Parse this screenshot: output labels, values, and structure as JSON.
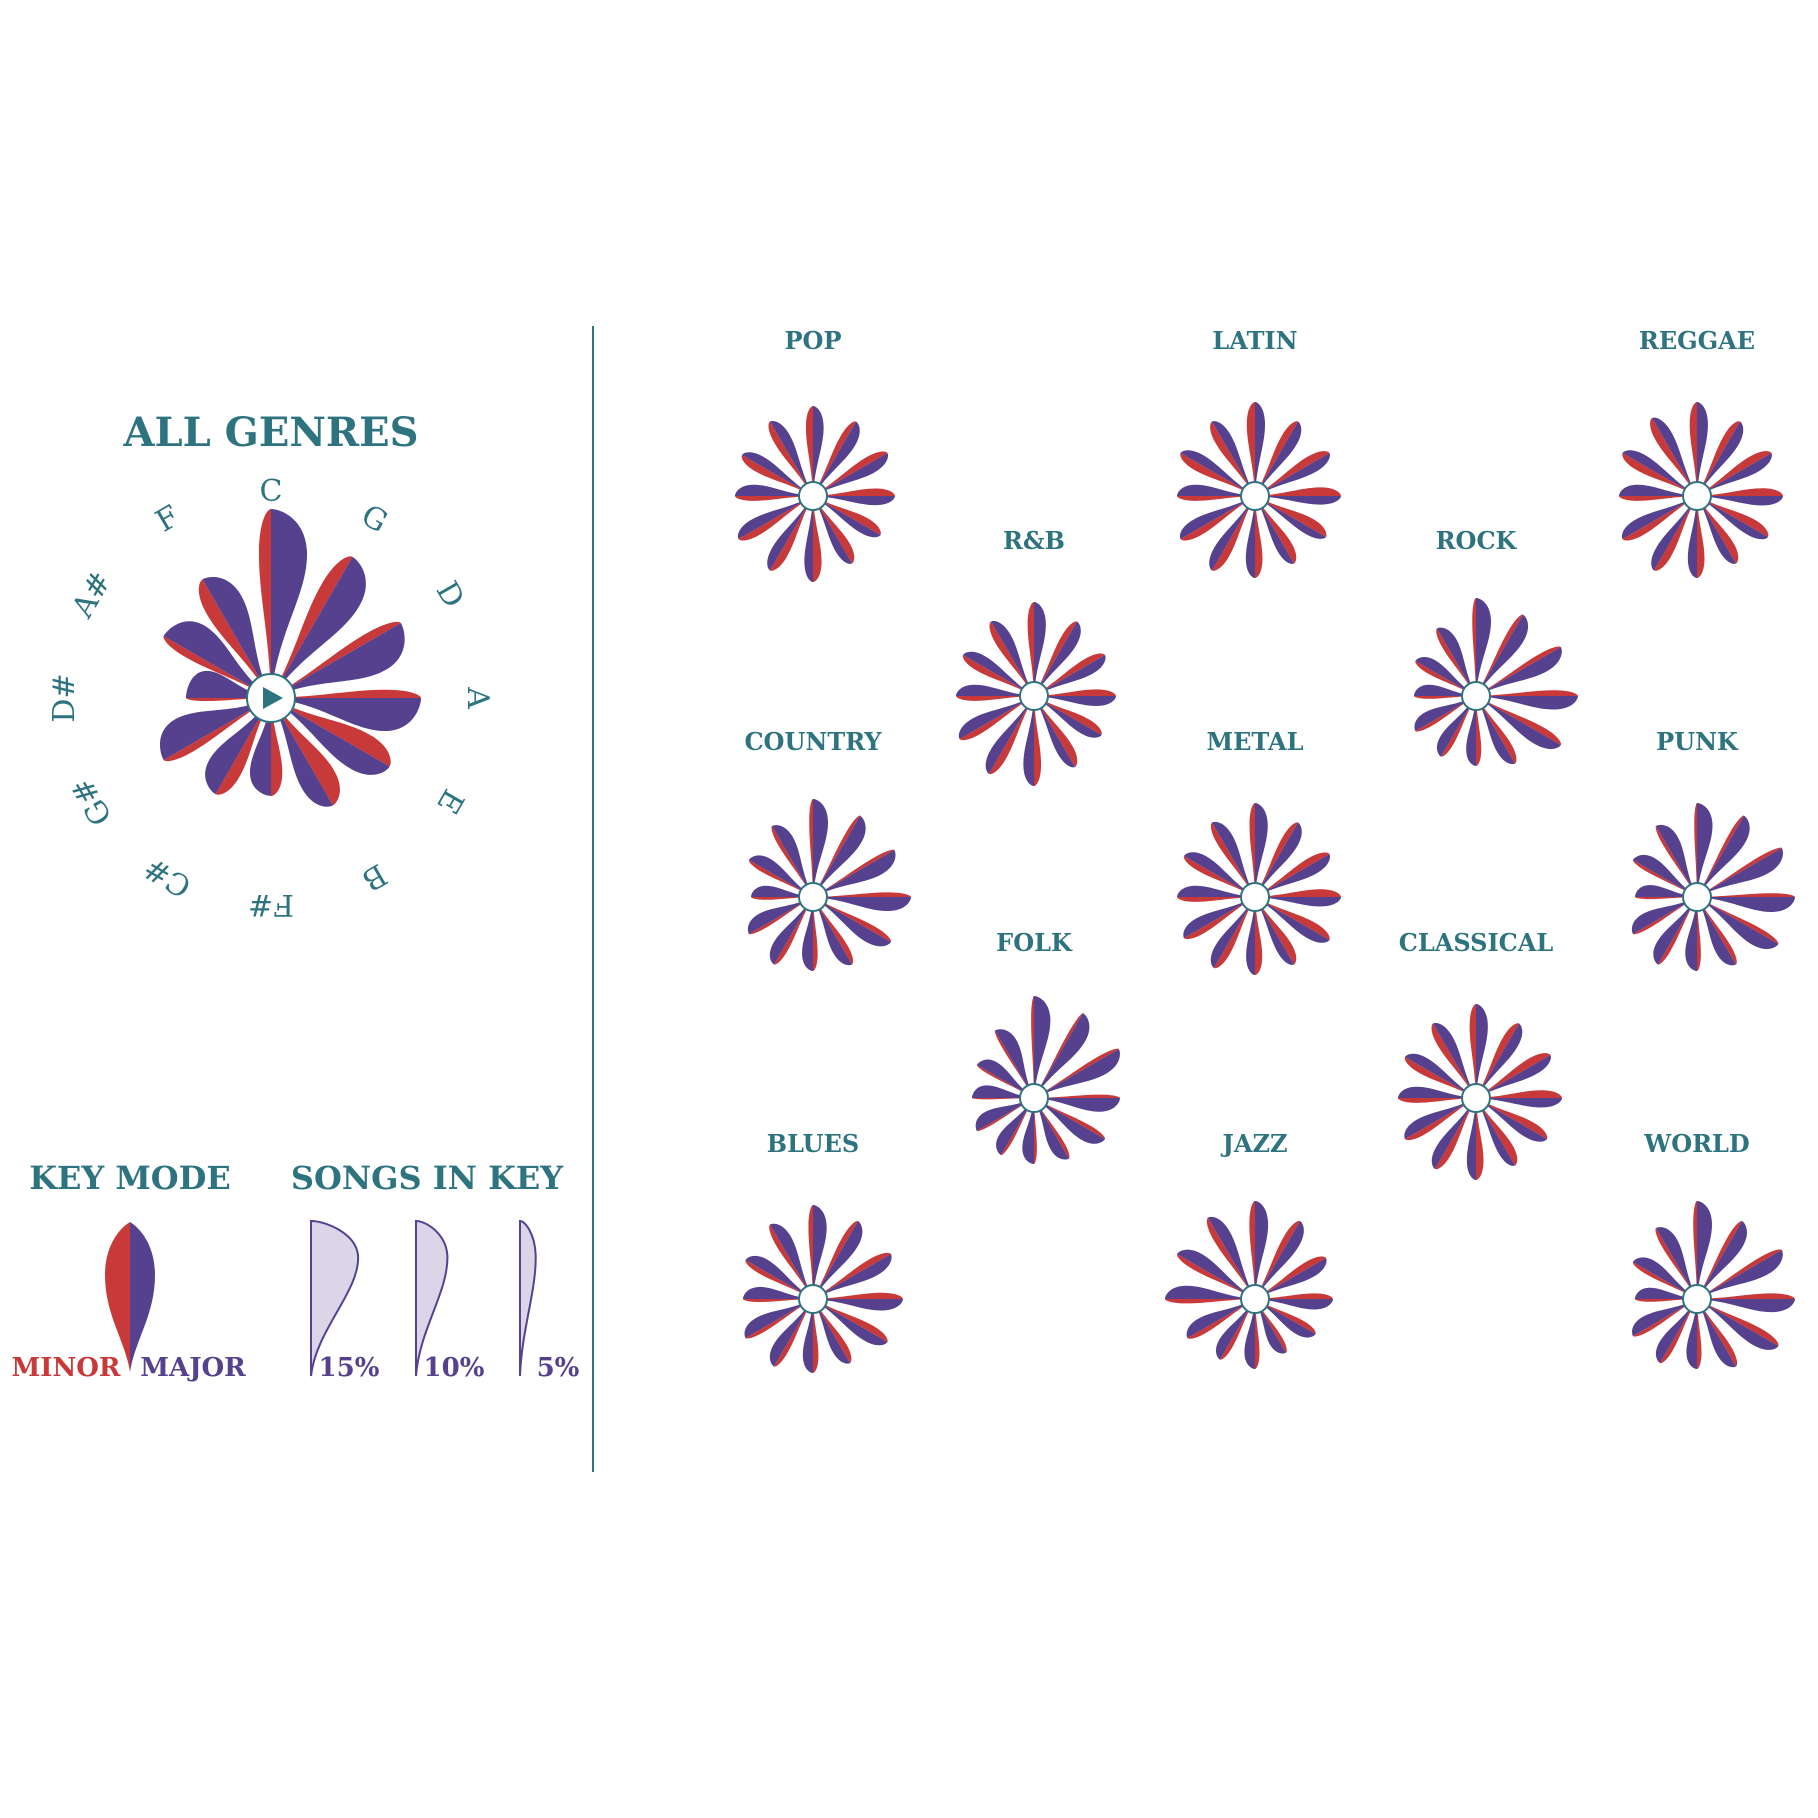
{
  "colors": {
    "minor": "#c8393a",
    "major": "#56418f",
    "accent": "#2e7480",
    "fill_light": "#dbd5e8"
  },
  "main": {
    "title": "ALL GENRES"
  },
  "keys": [
    "C",
    "G",
    "D",
    "A",
    "E",
    "B",
    "F#",
    "C#",
    "G#",
    "D#",
    "A#",
    "F"
  ],
  "legend": {
    "key_mode": "KEY MODE",
    "minor": "MINOR",
    "major": "MAJOR",
    "songs_in_key": "SONGS IN KEY",
    "sizes": [
      {
        "label": "15%",
        "share": 15
      },
      {
        "label": "10%",
        "share": 10
      },
      {
        "label": "5%",
        "share": 5
      }
    ]
  },
  "chart_data": [
    {
      "type": "radial-petal",
      "genre": "ALL GENRES",
      "keys": [
        "C",
        "G",
        "D",
        "A",
        "E",
        "B",
        "F#",
        "C#",
        "G#",
        "D#",
        "A#",
        "F"
      ],
      "share_pct": [
        13,
        11,
        10,
        10,
        9,
        8,
        6,
        7,
        8,
        5,
        8,
        9
      ],
      "minor_fraction": [
        0.25,
        0.3,
        0.2,
        0.2,
        0.45,
        0.5,
        0.35,
        0.35,
        0.2,
        0.1,
        0.2,
        0.35
      ]
    },
    {
      "type": "radial-petal",
      "genre": "POP",
      "keys": [
        "C",
        "G",
        "D",
        "A",
        "E",
        "B",
        "F#",
        "C#",
        "G#",
        "D#",
        "A#",
        "F"
      ],
      "share_pct": [
        8.5,
        8,
        8,
        7.5,
        7,
        7,
        8,
        8,
        8,
        7,
        7.5,
        8
      ],
      "minor_fraction": [
        0.4,
        0.35,
        0.4,
        0.45,
        0.5,
        0.5,
        0.5,
        0.45,
        0.4,
        0.3,
        0.45,
        0.4
      ]
    },
    {
      "type": "radial-petal",
      "genre": "LATIN",
      "keys": [
        "C",
        "G",
        "D",
        "A",
        "E",
        "B",
        "F#",
        "C#",
        "G#",
        "D#",
        "A#",
        "F"
      ],
      "share_pct": [
        9,
        8,
        8,
        8,
        7.5,
        7,
        7.5,
        8,
        8,
        7,
        8,
        8
      ],
      "minor_fraction": [
        0.45,
        0.4,
        0.45,
        0.5,
        0.55,
        0.5,
        0.45,
        0.45,
        0.4,
        0.3,
        0.45,
        0.45
      ]
    },
    {
      "type": "radial-petal",
      "genre": "REGGAE",
      "keys": [
        "C",
        "G",
        "D",
        "A",
        "E",
        "B",
        "F#",
        "C#",
        "G#",
        "D#",
        "A#",
        "F"
      ],
      "share_pct": [
        9,
        8,
        8,
        8,
        7.5,
        7,
        7.5,
        8,
        8,
        7,
        8,
        8.5
      ],
      "minor_fraction": [
        0.4,
        0.4,
        0.45,
        0.45,
        0.5,
        0.5,
        0.45,
        0.45,
        0.4,
        0.3,
        0.45,
        0.45
      ]
    },
    {
      "type": "radial-petal",
      "genre": "R&B",
      "keys": [
        "C",
        "G",
        "D",
        "A",
        "E",
        "B",
        "F#",
        "C#",
        "G#",
        "D#",
        "A#",
        "F"
      ],
      "share_pct": [
        9,
        8,
        7.5,
        7.5,
        7,
        7.5,
        8.5,
        8.5,
        8,
        7,
        7.5,
        8
      ],
      "minor_fraction": [
        0.35,
        0.35,
        0.4,
        0.4,
        0.45,
        0.5,
        0.4,
        0.4,
        0.35,
        0.3,
        0.4,
        0.4
      ]
    },
    {
      "type": "radial-petal",
      "genre": "ROCK",
      "keys": [
        "C",
        "G",
        "D",
        "A",
        "E",
        "B",
        "F#",
        "C#",
        "G#",
        "D#",
        "A#",
        "F"
      ],
      "share_pct": [
        9.5,
        9,
        9.5,
        10,
        9.5,
        7,
        6,
        6,
        6,
        5,
        6,
        7
      ],
      "minor_fraction": [
        0.2,
        0.25,
        0.25,
        0.3,
        0.35,
        0.4,
        0.35,
        0.3,
        0.25,
        0.2,
        0.3,
        0.3
      ]
    },
    {
      "type": "radial-petal",
      "genre": "COUNTRY",
      "keys": [
        "C",
        "G",
        "D",
        "A",
        "E",
        "B",
        "F#",
        "C#",
        "G#",
        "D#",
        "A#",
        "F"
      ],
      "share_pct": [
        9.5,
        9,
        9,
        9.5,
        8.5,
        7,
        6.5,
        7,
        6.5,
        5,
        6.5,
        7.5
      ],
      "minor_fraction": [
        0.2,
        0.2,
        0.2,
        0.25,
        0.3,
        0.35,
        0.3,
        0.3,
        0.2,
        0.2,
        0.25,
        0.25
      ]
    },
    {
      "type": "radial-petal",
      "genre": "METAL",
      "keys": [
        "C",
        "G",
        "D",
        "A",
        "E",
        "B",
        "F#",
        "C#",
        "G#",
        "D#",
        "A#",
        "F"
      ],
      "share_pct": [
        9,
        8,
        8,
        8,
        8,
        7,
        7,
        7.5,
        7.5,
        7,
        7.5,
        8
      ],
      "minor_fraction": [
        0.3,
        0.35,
        0.4,
        0.45,
        0.45,
        0.5,
        0.45,
        0.4,
        0.35,
        0.3,
        0.35,
        0.35
      ]
    },
    {
      "type": "radial-petal",
      "genre": "PUNK",
      "keys": [
        "C",
        "G",
        "D",
        "A",
        "E",
        "B",
        "F#",
        "C#",
        "G#",
        "D#",
        "A#",
        "F"
      ],
      "share_pct": [
        9,
        9,
        9.5,
        9.5,
        9,
        7,
        6.5,
        7,
        6.5,
        5,
        6.5,
        7.5
      ],
      "minor_fraction": [
        0.15,
        0.2,
        0.2,
        0.2,
        0.25,
        0.3,
        0.25,
        0.25,
        0.2,
        0.15,
        0.2,
        0.2
      ]
    },
    {
      "type": "radial-petal",
      "genre": "FOLK",
      "keys": [
        "C",
        "G",
        "D",
        "A",
        "E",
        "B",
        "F#",
        "C#",
        "G#",
        "D#",
        "A#",
        "F"
      ],
      "share_pct": [
        10,
        9.5,
        9.5,
        8,
        7.5,
        6,
        5.5,
        5.5,
        5.5,
        5,
        5.5,
        7
      ],
      "minor_fraction": [
        0.15,
        0.15,
        0.2,
        0.2,
        0.25,
        0.25,
        0.2,
        0.2,
        0.15,
        0.1,
        0.15,
        0.15
      ]
    },
    {
      "type": "radial-petal",
      "genre": "CLASSICAL",
      "keys": [
        "C",
        "G",
        "D",
        "A",
        "E",
        "B",
        "F#",
        "C#",
        "G#",
        "D#",
        "A#",
        "F"
      ],
      "share_pct": [
        9,
        8,
        8,
        8,
        7.5,
        7,
        7.5,
        7.5,
        7.5,
        7,
        7.5,
        8
      ],
      "minor_fraction": [
        0.35,
        0.4,
        0.45,
        0.45,
        0.45,
        0.5,
        0.45,
        0.4,
        0.35,
        0.3,
        0.4,
        0.4
      ]
    },
    {
      "type": "radial-petal",
      "genre": "BLUES",
      "keys": [
        "C",
        "G",
        "D",
        "A",
        "E",
        "B",
        "F#",
        "C#",
        "G#",
        "D#",
        "A#",
        "F"
      ],
      "share_pct": [
        9,
        8.5,
        8.5,
        8.5,
        8,
        6.5,
        6.5,
        7,
        7,
        6,
        7,
        8
      ],
      "minor_fraction": [
        0.25,
        0.3,
        0.35,
        0.35,
        0.4,
        0.4,
        0.35,
        0.3,
        0.25,
        0.2,
        0.3,
        0.3
      ]
    },
    {
      "type": "radial-petal",
      "genre": "JAZZ",
      "keys": [
        "C",
        "G",
        "D",
        "A",
        "E",
        "B",
        "F#",
        "C#",
        "G#",
        "D#",
        "A#",
        "F"
      ],
      "share_pct": [
        9.5,
        8.5,
        7.5,
        7,
        6,
        5,
        6,
        6,
        7,
        8.5,
        8.5,
        9
      ],
      "minor_fraction": [
        0.3,
        0.35,
        0.4,
        0.35,
        0.35,
        0.3,
        0.3,
        0.3,
        0.3,
        0.25,
        0.3,
        0.35
      ]
    },
    {
      "type": "radial-petal",
      "genre": "WORLD",
      "keys": [
        "C",
        "G",
        "D",
        "A",
        "E",
        "B",
        "F#",
        "C#",
        "G#",
        "D#",
        "A#",
        "F"
      ],
      "share_pct": [
        9.5,
        8.5,
        9.5,
        9.5,
        9,
        7,
        6,
        6.5,
        6.5,
        5,
        6.5,
        7.5
      ],
      "minor_fraction": [
        0.2,
        0.25,
        0.25,
        0.3,
        0.35,
        0.35,
        0.3,
        0.3,
        0.25,
        0.2,
        0.25,
        0.25
      ]
    }
  ]
}
